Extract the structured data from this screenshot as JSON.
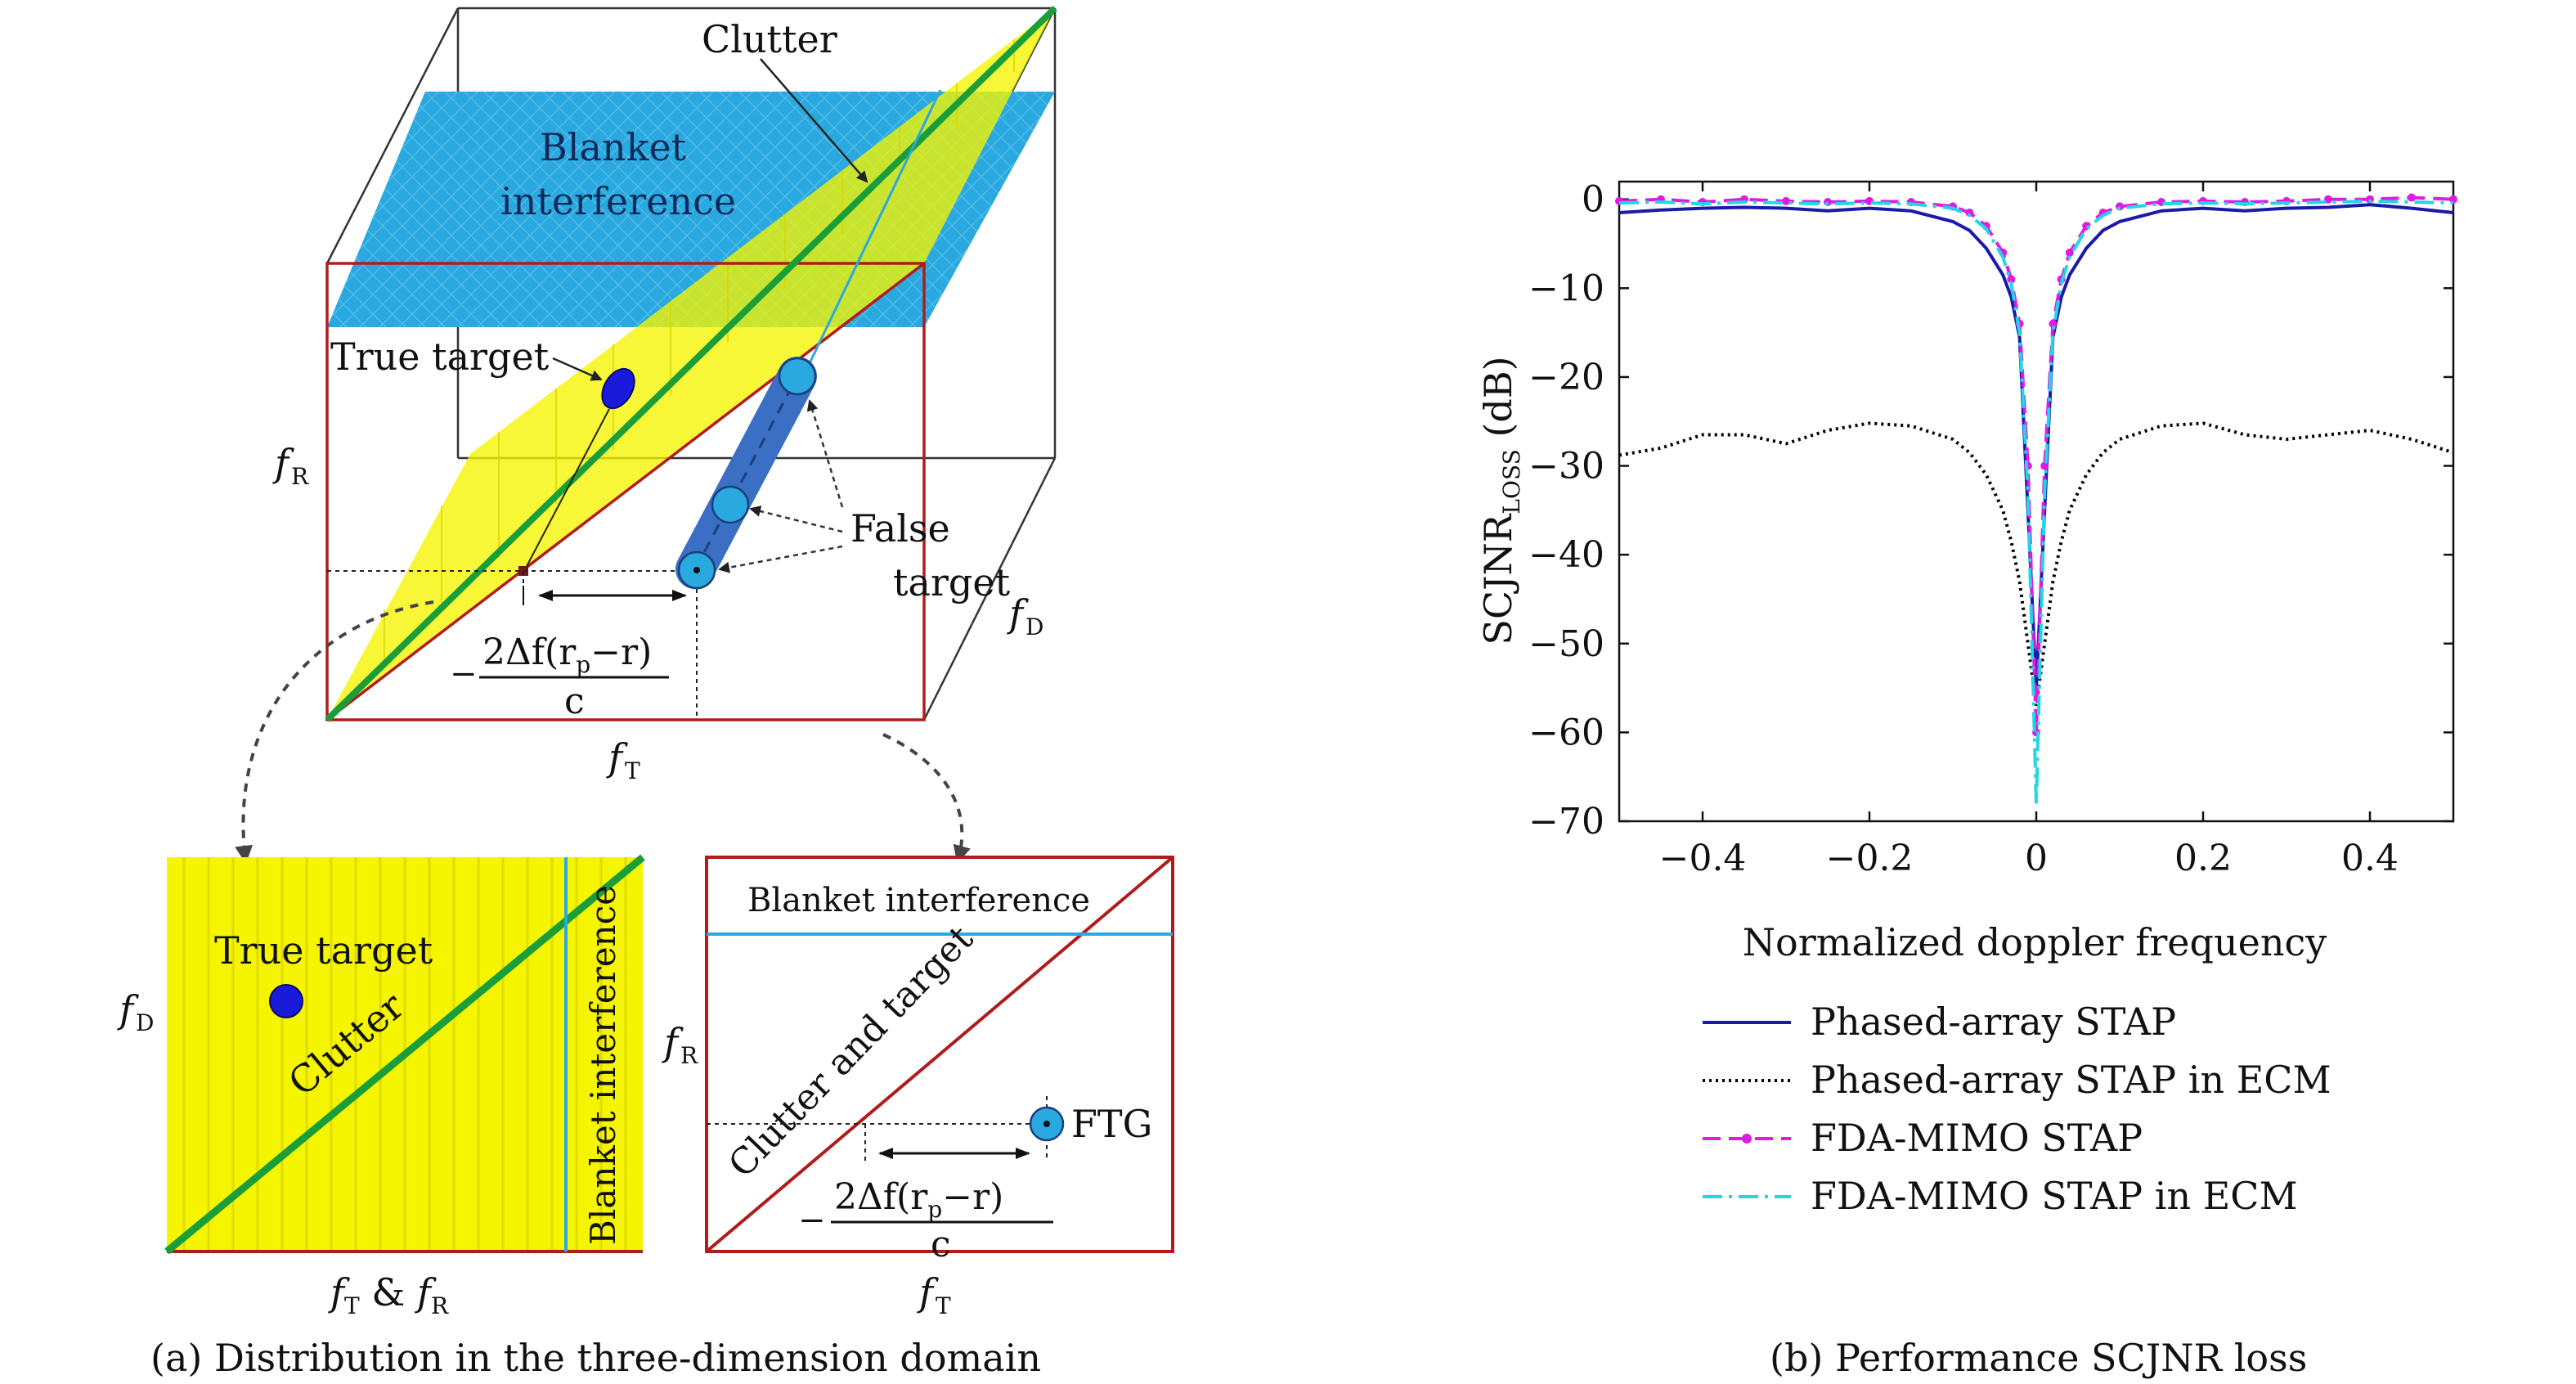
{
  "panel_a": {
    "caption": "(a) Distribution in the three-dimension domain",
    "cube": {
      "labels": {
        "clutter": "Clutter",
        "blanket_line1": "Blanket",
        "blanket_line2": "interference",
        "true_target": "True target",
        "false_line1": "False",
        "false_line2": "target",
        "fR": "f",
        "fR_sub": "R",
        "fD": "f",
        "fD_sub": "D",
        "fT": "f",
        "fT_sub": "T",
        "minus": "−",
        "frac_num": "2Δf(r",
        "frac_num_sub": "p",
        "frac_num_tail": "−r)",
        "frac_den": "c"
      }
    },
    "sub_left": {
      "true_target": "True target",
      "clutter": "Clutter",
      "blanket": "Blanket interference",
      "y_label": "f",
      "y_label_sub": "D",
      "x_label_a": "f",
      "x_label_a_sub": "T",
      "x_label_amp": " & ",
      "x_label_b": "f",
      "x_label_b_sub": "R"
    },
    "sub_right": {
      "blanket": "Blanket interference",
      "clutter_target": "Clutter and target",
      "ftg": "FTG",
      "y_label": "f",
      "y_label_sub": "R",
      "x_label": "f",
      "x_label_sub": "T",
      "minus": "−",
      "frac_num": "2Δf(r",
      "frac_num_sub": "p",
      "frac_num_tail": "−r)",
      "frac_den": "c"
    },
    "colors": {
      "clutter_plane": "#f5f500",
      "blanket": "#29a9df",
      "clutter_line": "#1a9e3a",
      "frame": "#b01c1c",
      "true_target": "#1a1adb",
      "false_target": "#29a9df",
      "false_track": "#3b6fc4"
    }
  },
  "panel_b": {
    "caption": "(b) Performance SCJNR loss",
    "chart_data": {
      "type": "line",
      "xlabel": "Normalized doppler frequency",
      "ylabel_main": "SCJNR",
      "ylabel_sub": "LOSS",
      "ylabel_unit": " (dB)",
      "xlim": [
        -0.5,
        0.5
      ],
      "ylim": [
        -70,
        2
      ],
      "xticks": [
        -0.4,
        -0.2,
        0,
        0.2,
        0.4
      ],
      "xtick_labels": [
        "−0.4",
        "−0.2",
        "0",
        "0.2",
        "0.4"
      ],
      "yticks": [
        0,
        -10,
        -20,
        -30,
        -40,
        -50,
        -60,
        -70
      ],
      "ytick_labels": [
        "0",
        "−10",
        "−20",
        "−30",
        "−40",
        "−50",
        "−60",
        "−70"
      ],
      "series": [
        {
          "name": "Phased-array STAP",
          "color": "#1a1aa8",
          "style": "solid",
          "x": [
            -0.5,
            -0.45,
            -0.4,
            -0.35,
            -0.3,
            -0.25,
            -0.2,
            -0.15,
            -0.1,
            -0.08,
            -0.06,
            -0.04,
            -0.03,
            -0.02,
            -0.01,
            0,
            0.01,
            0.02,
            0.03,
            0.04,
            0.06,
            0.08,
            0.1,
            0.15,
            0.2,
            0.25,
            0.3,
            0.35,
            0.4,
            0.45,
            0.5
          ],
          "y": [
            -1.5,
            -1.2,
            -1.0,
            -0.9,
            -1.0,
            -1.3,
            -1.0,
            -1.3,
            -2.5,
            -3.5,
            -5.5,
            -8.5,
            -11,
            -15.5,
            -35,
            -55,
            -35,
            -15.5,
            -11,
            -8.5,
            -5.5,
            -3.5,
            -2.5,
            -1.3,
            -1.0,
            -1.3,
            -1.0,
            -0.9,
            -0.6,
            -1.0,
            -1.5
          ]
        },
        {
          "name": "Phased-array STAP in ECM",
          "color": "#000000",
          "style": "dotted",
          "x": [
            -0.5,
            -0.45,
            -0.4,
            -0.35,
            -0.3,
            -0.25,
            -0.2,
            -0.15,
            -0.1,
            -0.08,
            -0.06,
            -0.04,
            -0.03,
            -0.02,
            -0.01,
            0,
            0.01,
            0.02,
            0.03,
            0.04,
            0.06,
            0.08,
            0.1,
            0.15,
            0.2,
            0.25,
            0.3,
            0.35,
            0.4,
            0.45,
            0.5
          ],
          "y": [
            -28.8,
            -28.0,
            -26.5,
            -26.5,
            -27.5,
            -26.0,
            -25.2,
            -25.5,
            -27.0,
            -28.5,
            -31.0,
            -35.0,
            -38.5,
            -43.0,
            -50.0,
            -57.0,
            -50.0,
            -43.0,
            -38.5,
            -35.0,
            -31.0,
            -28.5,
            -27.0,
            -25.5,
            -25.2,
            -26.5,
            -27.0,
            -26.5,
            -26.0,
            -27.0,
            -28.5
          ]
        },
        {
          "name": "FDA-MIMO STAP",
          "color": "#e01ae0",
          "style": "dashed-dot-markers",
          "x": [
            -0.5,
            -0.45,
            -0.4,
            -0.35,
            -0.3,
            -0.25,
            -0.2,
            -0.15,
            -0.1,
            -0.08,
            -0.06,
            -0.04,
            -0.03,
            -0.02,
            -0.01,
            0,
            0.01,
            0.02,
            0.03,
            0.04,
            0.06,
            0.08,
            0.1,
            0.15,
            0.2,
            0.25,
            0.3,
            0.35,
            0.4,
            0.45,
            0.5
          ],
          "y": [
            -0.2,
            0.0,
            -0.3,
            0.0,
            -0.2,
            -0.3,
            -0.2,
            -0.3,
            -0.8,
            -1.5,
            -3.0,
            -6.0,
            -9.0,
            -14.0,
            -30.0,
            -60.0,
            -30.0,
            -14.0,
            -9.0,
            -6.0,
            -3.0,
            -1.5,
            -0.8,
            -0.3,
            -0.2,
            -0.3,
            -0.2,
            0.0,
            0.0,
            0.2,
            0.0
          ]
        },
        {
          "name": "FDA-MIMO STAP in ECM",
          "color": "#22d6e6",
          "style": "dashdot",
          "x": [
            -0.5,
            -0.45,
            -0.4,
            -0.35,
            -0.3,
            -0.25,
            -0.2,
            -0.15,
            -0.1,
            -0.08,
            -0.06,
            -0.04,
            -0.03,
            -0.02,
            -0.01,
            0,
            0.01,
            0.02,
            0.03,
            0.04,
            0.06,
            0.08,
            0.1,
            0.15,
            0.2,
            0.25,
            0.3,
            0.35,
            0.4,
            0.45,
            0.5
          ],
          "y": [
            -0.4,
            -0.3,
            -0.5,
            -0.3,
            -0.4,
            -0.5,
            -0.4,
            -0.5,
            -1.0,
            -1.8,
            -3.3,
            -6.5,
            -9.5,
            -15.0,
            -33.0,
            -68.0,
            -33.0,
            -15.0,
            -9.5,
            -6.5,
            -3.3,
            -1.8,
            -1.0,
            -0.5,
            -0.4,
            -0.5,
            -0.4,
            -0.3,
            -0.2,
            -0.3,
            -0.4
          ]
        }
      ],
      "legend_position": "below"
    }
  }
}
